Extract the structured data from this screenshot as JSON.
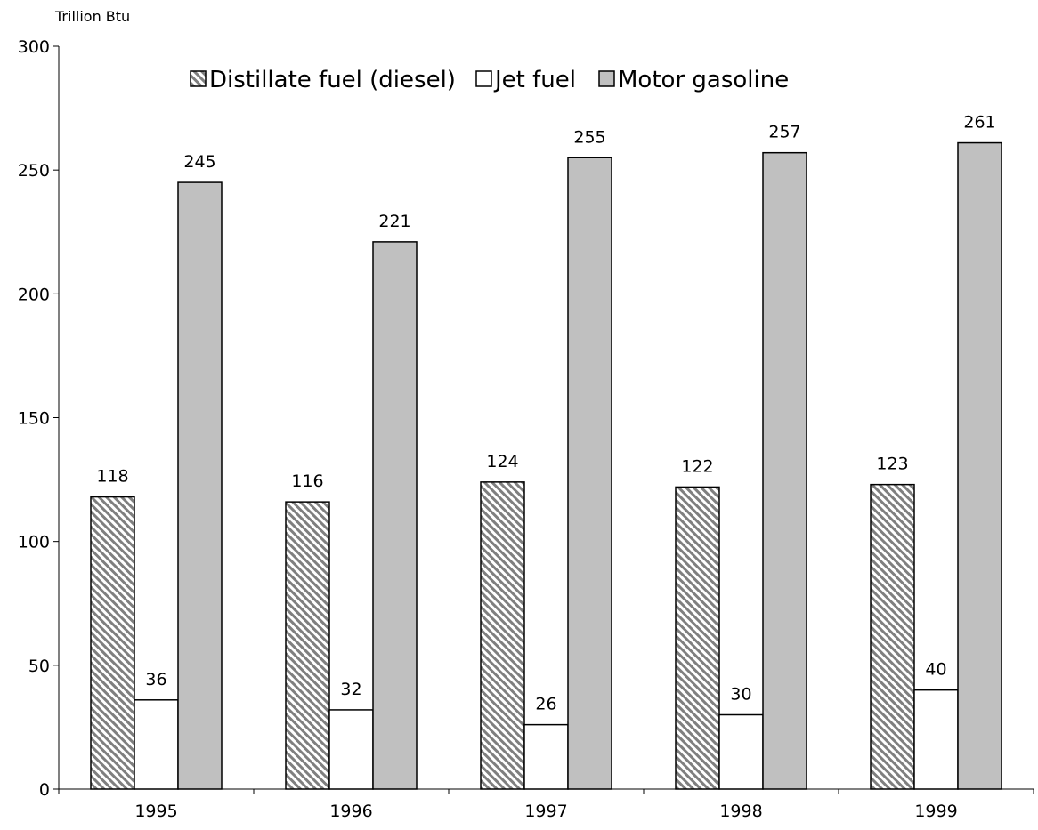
{
  "chart_data": {
    "type": "bar",
    "title": "",
    "ylabel": "Trillion Btu",
    "xlabel": "",
    "categories": [
      "1995",
      "1996",
      "1997",
      "1998",
      "1999"
    ],
    "ylim": [
      0,
      300
    ],
    "yticks": [
      0,
      50,
      100,
      150,
      200,
      250,
      300
    ],
    "series": [
      {
        "name": "Distillate fuel (diesel)",
        "values": [
          118,
          116,
          124,
          122,
          123
        ],
        "fill": "hatch",
        "color": "#7f7f7f"
      },
      {
        "name": "Jet fuel",
        "values": [
          36,
          32,
          26,
          30,
          40
        ],
        "fill": "solid",
        "color": "#ffffff"
      },
      {
        "name": "Motor gasoline",
        "values": [
          245,
          221,
          255,
          257,
          261
        ],
        "fill": "solid",
        "color": "#c0c0c0"
      }
    ],
    "legend_position": "top",
    "grid": false
  }
}
